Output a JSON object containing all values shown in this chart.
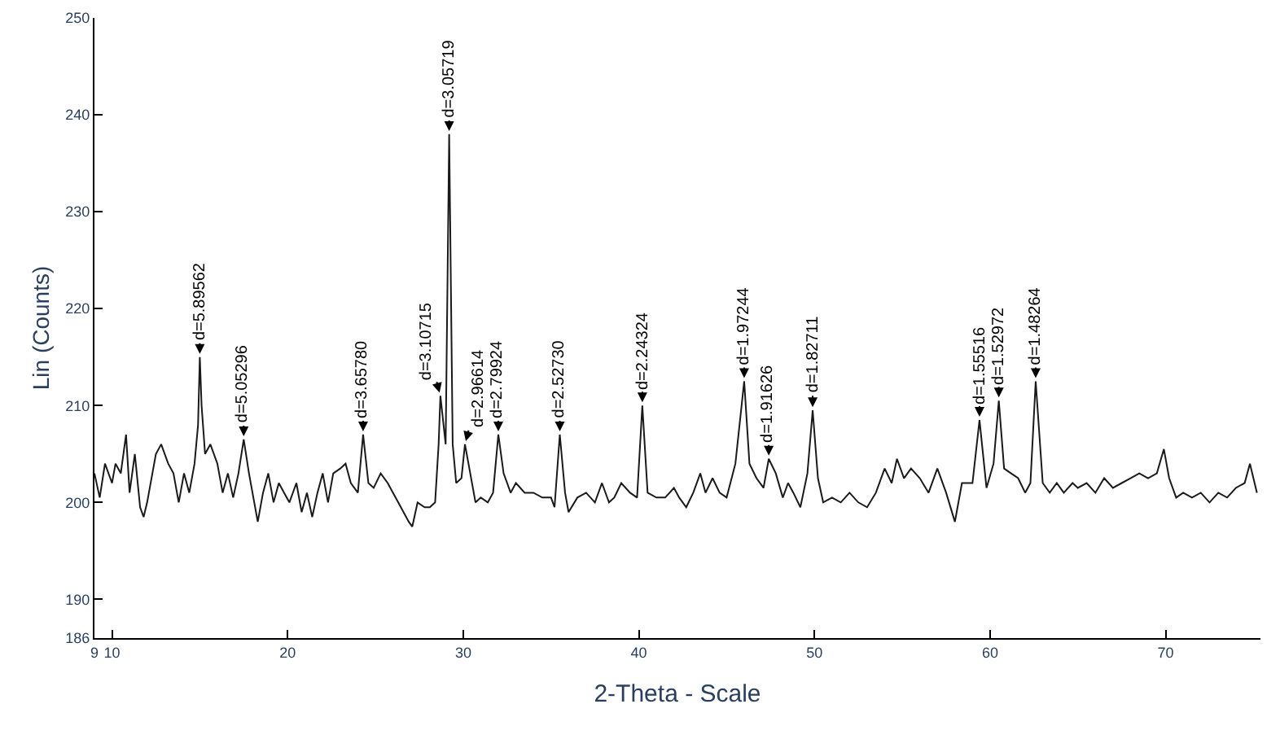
{
  "chart_data": {
    "type": "line",
    "xlabel": "2-Theta - Scale",
    "ylabel": "Lin (Counts)",
    "x": [
      9.0,
      9.3,
      9.6,
      10.0,
      10.2,
      10.5,
      10.8,
      11.0,
      11.3,
      11.6,
      11.8,
      12.0,
      12.3,
      12.5,
      12.8,
      13.2,
      13.5,
      13.8,
      14.1,
      14.4,
      14.7,
      14.9,
      15.0,
      15.1,
      15.3,
      15.6,
      16.0,
      16.3,
      16.6,
      16.9,
      17.2,
      17.5,
      17.8,
      18.1,
      18.3,
      18.6,
      18.9,
      19.2,
      19.5,
      19.8,
      20.1,
      20.5,
      20.8,
      21.1,
      21.4,
      21.7,
      22.0,
      22.3,
      22.6,
      23.0,
      23.3,
      23.6,
      24.0,
      24.3,
      24.6,
      24.9,
      25.3,
      25.7,
      26.0,
      26.3,
      26.6,
      26.9,
      27.1,
      27.4,
      27.8,
      28.1,
      28.4,
      28.6,
      28.7,
      29.0,
      29.2,
      29.4,
      29.6,
      29.9,
      30.1,
      30.4,
      30.7,
      31.0,
      31.4,
      31.7,
      32.0,
      32.3,
      32.7,
      33.0,
      33.5,
      34.0,
      34.5,
      35.0,
      35.2,
      35.5,
      35.8,
      36.0,
      36.5,
      37.0,
      37.5,
      37.9,
      38.3,
      38.6,
      39.0,
      39.5,
      39.9,
      40.2,
      40.5,
      41.0,
      41.5,
      42.0,
      42.3,
      42.7,
      43.1,
      43.5,
      43.8,
      44.2,
      44.6,
      45.0,
      45.5,
      46.0,
      46.3,
      46.7,
      47.1,
      47.4,
      47.8,
      48.2,
      48.5,
      48.8,
      49.2,
      49.6,
      49.9,
      50.2,
      50.5,
      51.0,
      51.5,
      52.0,
      52.5,
      53.0,
      53.5,
      54.0,
      54.4,
      54.7,
      55.1,
      55.5,
      56.0,
      56.5,
      57.0,
      57.5,
      58.0,
      58.4,
      59.0,
      59.4,
      59.8,
      60.2,
      60.5,
      60.8,
      61.2,
      61.6,
      62.0,
      62.3,
      62.6,
      63.0,
      63.4,
      63.8,
      64.2,
      64.7,
      65.0,
      65.5,
      66.0,
      66.5,
      67.0,
      67.5,
      68.0,
      68.5,
      69.0,
      69.5,
      69.9,
      70.2,
      70.6,
      71.0,
      71.5,
      72.0,
      72.5,
      73.0,
      73.5,
      74.0,
      74.5,
      74.8,
      75.2
    ],
    "series": [
      {
        "color": "#1a1a1a",
        "values": [
          203,
          200.5,
          204,
          202,
          204,
          203,
          207,
          201,
          205,
          199.5,
          198.5,
          200,
          203,
          205,
          206,
          204,
          203,
          200,
          203,
          201,
          204,
          208,
          215,
          210,
          205,
          206,
          204,
          201,
          203,
          200.5,
          203,
          206.5,
          203,
          200,
          198,
          201,
          203,
          200,
          202,
          201,
          200,
          202,
          199,
          201,
          198.5,
          201,
          203,
          200,
          203,
          203.5,
          204,
          202,
          201,
          207,
          202,
          201.5,
          203,
          202,
          201,
          200,
          199,
          198,
          197.5,
          200,
          199.5,
          199.5,
          200,
          206,
          211,
          206,
          238,
          206,
          202,
          202.5,
          206,
          203,
          200,
          200.5,
          200,
          201,
          207,
          203,
          201,
          202,
          201,
          201,
          200.5,
          200.5,
          199.5,
          207,
          201,
          199,
          200.5,
          201,
          200,
          202,
          200,
          200.5,
          202,
          201,
          200.5,
          210,
          201,
          200.5,
          200.5,
          201.5,
          200.5,
          199.5,
          201,
          203,
          201,
          202.5,
          201,
          200.5,
          204,
          212.5,
          204,
          202.5,
          201.5,
          204.5,
          203,
          200.5,
          202,
          201,
          199.5,
          203,
          209.5,
          202.5,
          200,
          200.5,
          200,
          201,
          200,
          199.5,
          201,
          203.5,
          202,
          204.5,
          202.5,
          203.5,
          202.5,
          201,
          203.5,
          201,
          198,
          202,
          202,
          208.5,
          201.5,
          204,
          210.5,
          203.5,
          203,
          202.5,
          201,
          202,
          212.5,
          202,
          201,
          202,
          201,
          202,
          201.5,
          202,
          201,
          202.5,
          201.5,
          202,
          202.5,
          203,
          202.5,
          203,
          205.5,
          202.5,
          200.5,
          201,
          200.5,
          201,
          200,
          201,
          200.5,
          201.5,
          202,
          204,
          201
        ]
      }
    ],
    "xlim": [
      9,
      75.4
    ],
    "xticks": [
      9,
      10,
      20,
      30,
      40,
      50,
      60,
      70
    ],
    "ylim": [
      186,
      250
    ],
    "yticks": [
      186,
      190,
      200,
      210,
      220,
      230,
      240,
      250
    ],
    "marker": "none",
    "line_style": "solid",
    "annotations": [
      {
        "text": "d=5.89562",
        "x": 15.0,
        "y": 215
      },
      {
        "text": "d=5.05296",
        "x": 17.5,
        "y": 206.5
      },
      {
        "text": "d=3.65780",
        "x": 24.3,
        "y": 207
      },
      {
        "text": "d=3.10715",
        "x": 28.7,
        "y": 211
      },
      {
        "text": "d=3.05719",
        "x": 29.2,
        "y": 238
      },
      {
        "text": "d=2.96614",
        "x": 30.1,
        "y": 206
      },
      {
        "text": "d=2.79924",
        "x": 32.0,
        "y": 207
      },
      {
        "text": "d=2.52730",
        "x": 35.5,
        "y": 207
      },
      {
        "text": "d=2.24324",
        "x": 40.2,
        "y": 210
      },
      {
        "text": "d=1.97244",
        "x": 46.0,
        "y": 212.5
      },
      {
        "text": "d=1.91626",
        "x": 47.4,
        "y": 204.5
      },
      {
        "text": "d=1.82711",
        "x": 49.9,
        "y": 209.5
      },
      {
        "text": "d=1.55516",
        "x": 59.4,
        "y": 208.5
      },
      {
        "text": "d=1.52972",
        "x": 60.5,
        "y": 210.5
      },
      {
        "text": "d=1.48264",
        "x": 62.6,
        "y": 212.5
      }
    ]
  }
}
